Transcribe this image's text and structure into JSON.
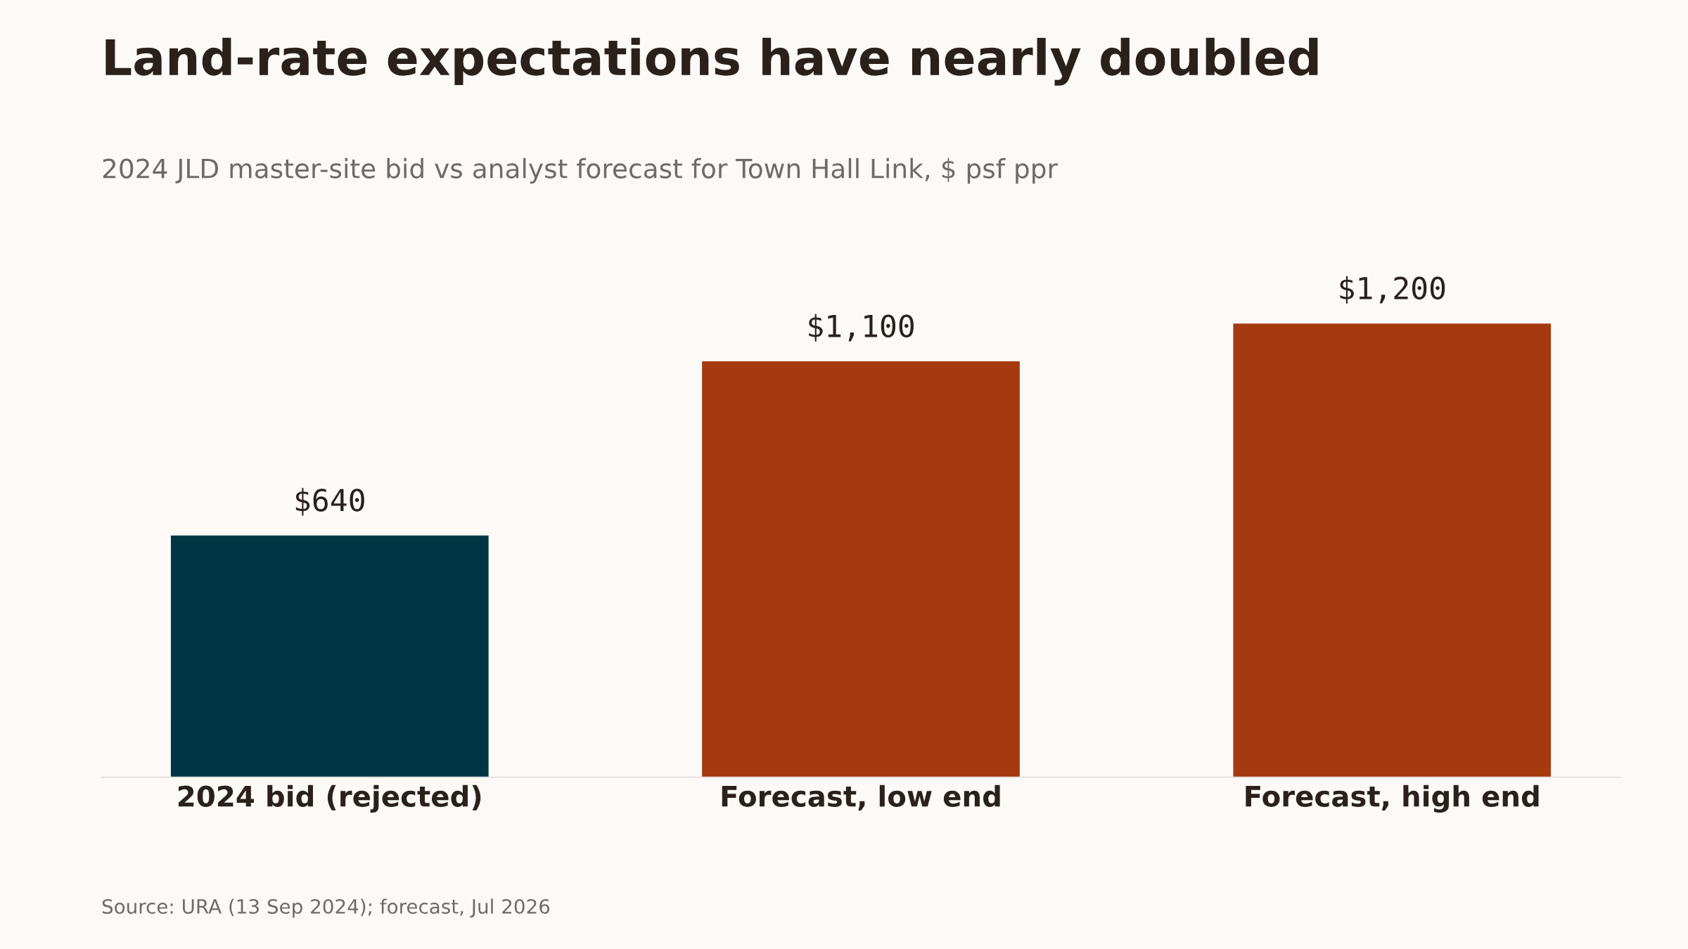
{
  "chart_data": {
    "type": "bar",
    "title": "Land-rate expectations have nearly doubled",
    "subtitle": "2024 JLD master-site bid vs analyst forecast for Town Hall Link, $ psf ppr",
    "categories": [
      "2024 bid (rejected)",
      "Forecast, low end",
      "Forecast, high end"
    ],
    "values": [
      640,
      1100,
      1200
    ],
    "colors": [
      "#003643",
      "#a63a0e",
      "#a63a0e"
    ],
    "value_labels": [
      "$640",
      "$1,100",
      "$1,200"
    ],
    "grid": false,
    "legend": false,
    "annotations": [
      "Source: URA (13 Sep 2024); forecast, Jul 2026"
    ]
  }
}
